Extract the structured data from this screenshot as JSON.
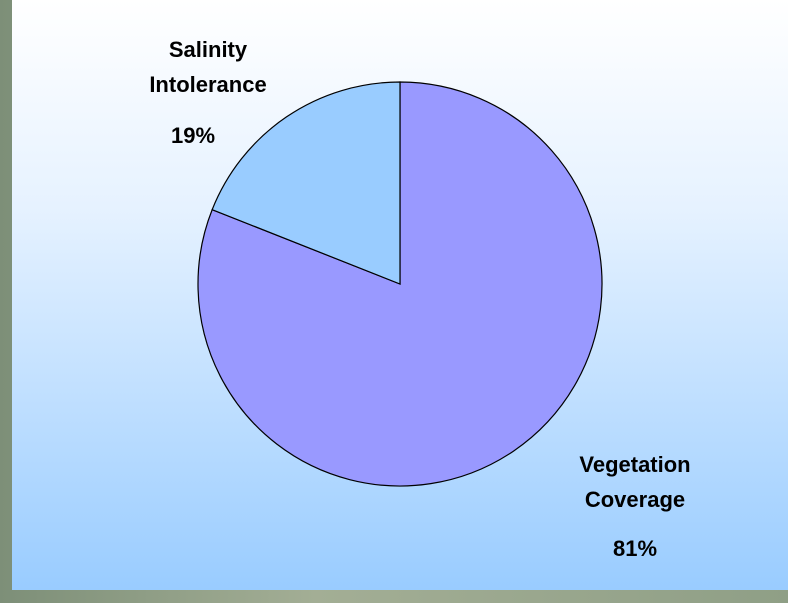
{
  "chart_data": {
    "type": "pie",
    "categories": [
      "Vegetation Coverage",
      "Salinity Intolerance"
    ],
    "values": [
      81,
      19
    ],
    "value_labels": [
      "81%",
      "19%"
    ],
    "colors": [
      "#9999ff",
      "#99ccff"
    ]
  }
}
